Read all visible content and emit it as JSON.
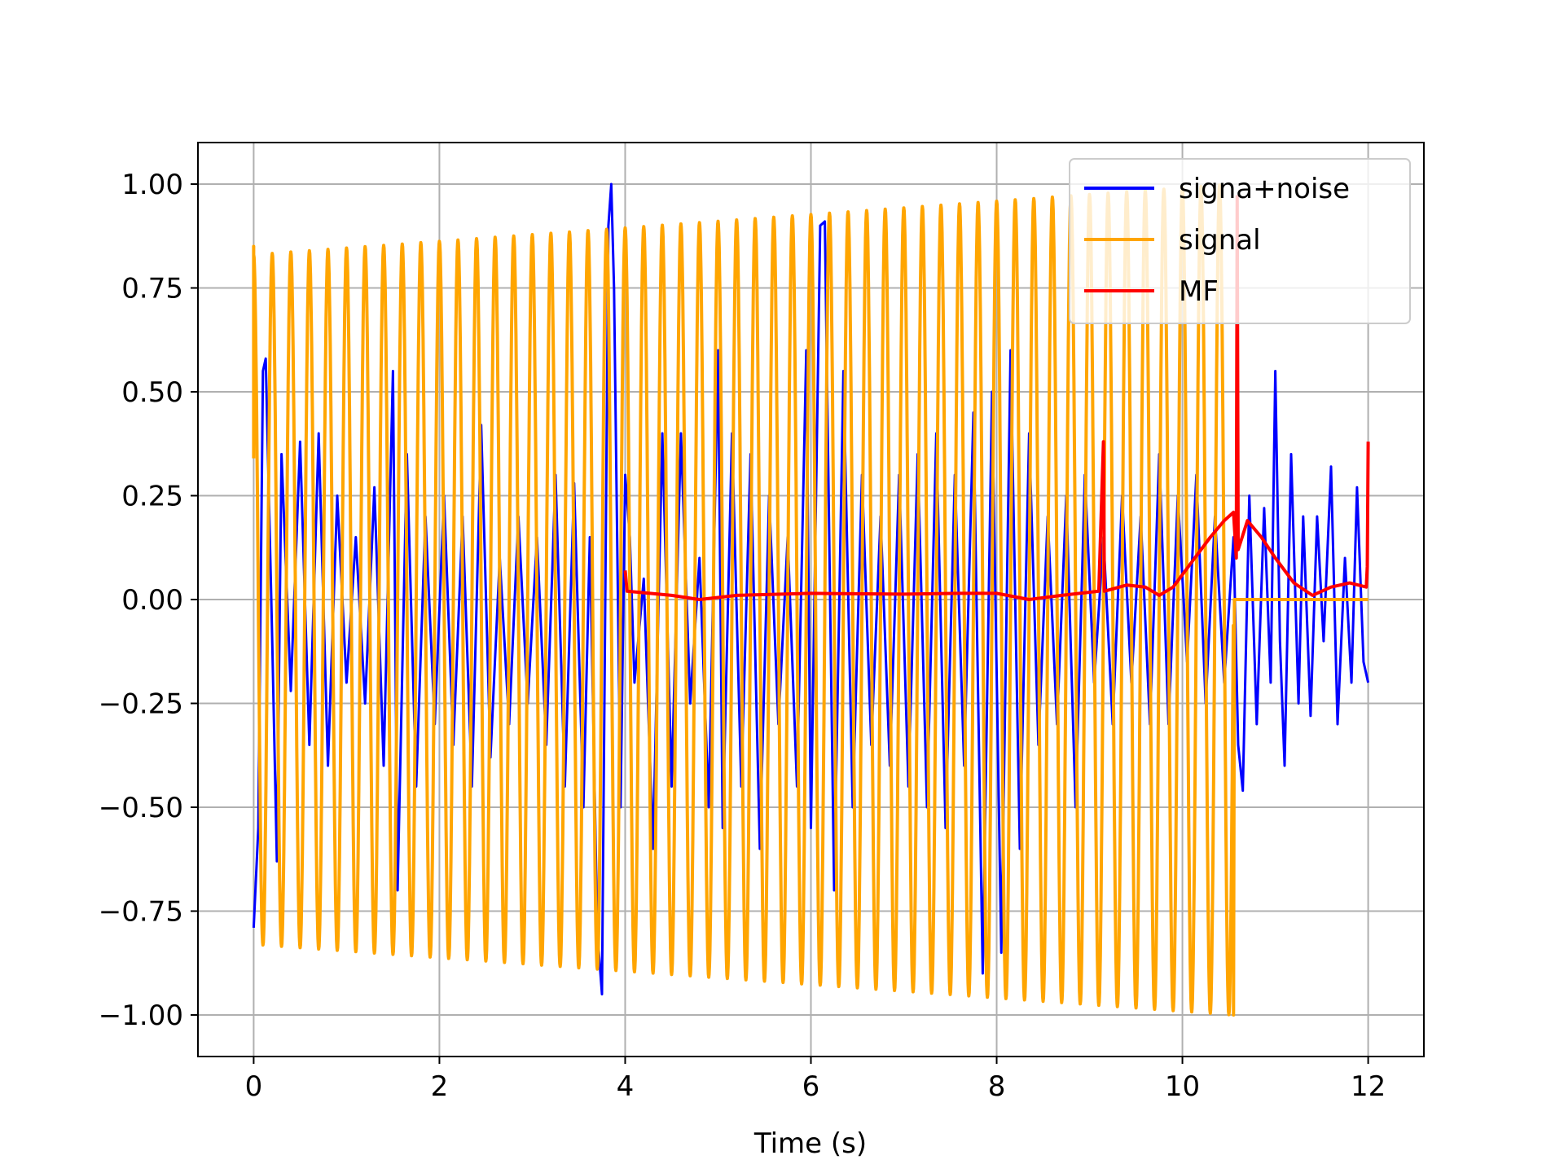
{
  "chart_data": {
    "type": "line",
    "title": "",
    "xlabel": "Time (s)",
    "ylabel": "",
    "xlim": [
      -0.6,
      12.6
    ],
    "ylim": [
      -1.1,
      1.1
    ],
    "x_ticks": [
      0,
      2,
      4,
      6,
      8,
      10,
      12
    ],
    "x_tick_labels": [
      "0",
      "2",
      "4",
      "6",
      "8",
      "10",
      "12"
    ],
    "y_ticks": [
      1.0,
      0.75,
      0.5,
      0.25,
      0.0,
      -0.25,
      -0.5,
      -0.75,
      -1.0
    ],
    "y_tick_labels": [
      "1.00",
      "0.75",
      "0.50",
      "0.25",
      "0.00",
      "−0.25",
      "−0.50",
      "−0.75",
      "−1.00"
    ],
    "grid": true,
    "legend_position": "top-right",
    "series": [
      {
        "name": "signa+noise",
        "color": "#0000ff",
        "points": [
          [
            0.0,
            -0.79
          ],
          [
            0.05,
            -0.55
          ],
          [
            0.1,
            0.55
          ],
          [
            0.13,
            0.58
          ],
          [
            0.2,
            -0.1
          ],
          [
            0.25,
            -0.63
          ],
          [
            0.3,
            0.35
          ],
          [
            0.4,
            -0.22
          ],
          [
            0.5,
            0.38
          ],
          [
            0.6,
            -0.35
          ],
          [
            0.7,
            0.4
          ],
          [
            0.8,
            -0.4
          ],
          [
            0.9,
            0.25
          ],
          [
            1.0,
            -0.2
          ],
          [
            1.1,
            0.15
          ],
          [
            1.2,
            -0.25
          ],
          [
            1.3,
            0.27
          ],
          [
            1.4,
            -0.4
          ],
          [
            1.5,
            0.55
          ],
          [
            1.55,
            -0.7
          ],
          [
            1.65,
            0.35
          ],
          [
            1.75,
            -0.45
          ],
          [
            1.85,
            0.2
          ],
          [
            1.95,
            -0.3
          ],
          [
            2.05,
            0.25
          ],
          [
            2.15,
            -0.35
          ],
          [
            2.25,
            0.2
          ],
          [
            2.35,
            -0.45
          ],
          [
            2.45,
            0.42
          ],
          [
            2.55,
            -0.38
          ],
          [
            2.65,
            0.1
          ],
          [
            2.75,
            -0.3
          ],
          [
            2.85,
            0.2
          ],
          [
            2.95,
            -0.25
          ],
          [
            3.05,
            0.15
          ],
          [
            3.15,
            -0.35
          ],
          [
            3.25,
            0.3
          ],
          [
            3.35,
            -0.45
          ],
          [
            3.45,
            0.28
          ],
          [
            3.55,
            -0.5
          ],
          [
            3.62,
            0.15
          ],
          [
            3.7,
            -0.8
          ],
          [
            3.75,
            -0.95
          ],
          [
            3.82,
            0.9
          ],
          [
            3.85,
            1.0
          ],
          [
            3.88,
            0.75
          ],
          [
            3.95,
            -0.5
          ],
          [
            4.0,
            0.3
          ],
          [
            4.05,
            0.15
          ],
          [
            4.1,
            -0.2
          ],
          [
            4.2,
            0.05
          ],
          [
            4.3,
            -0.6
          ],
          [
            4.4,
            0.4
          ],
          [
            4.5,
            -0.45
          ],
          [
            4.6,
            0.4
          ],
          [
            4.7,
            -0.25
          ],
          [
            4.8,
            0.1
          ],
          [
            4.9,
            -0.5
          ],
          [
            5.0,
            0.6
          ],
          [
            5.05,
            -0.55
          ],
          [
            5.15,
            0.4
          ],
          [
            5.25,
            -0.45
          ],
          [
            5.35,
            0.35
          ],
          [
            5.45,
            -0.6
          ],
          [
            5.55,
            0.25
          ],
          [
            5.65,
            -0.3
          ],
          [
            5.75,
            0.15
          ],
          [
            5.85,
            -0.45
          ],
          [
            5.95,
            0.6
          ],
          [
            6.0,
            -0.55
          ],
          [
            6.1,
            0.9
          ],
          [
            6.15,
            0.91
          ],
          [
            6.25,
            -0.7
          ],
          [
            6.35,
            0.55
          ],
          [
            6.45,
            -0.5
          ],
          [
            6.55,
            0.3
          ],
          [
            6.65,
            -0.35
          ],
          [
            6.75,
            0.2
          ],
          [
            6.85,
            -0.4
          ],
          [
            6.95,
            0.3
          ],
          [
            7.05,
            -0.45
          ],
          [
            7.15,
            0.35
          ],
          [
            7.25,
            -0.5
          ],
          [
            7.35,
            0.4
          ],
          [
            7.45,
            -0.55
          ],
          [
            7.55,
            0.3
          ],
          [
            7.65,
            -0.4
          ],
          [
            7.75,
            0.45
          ],
          [
            7.85,
            -0.9
          ],
          [
            7.95,
            0.5
          ],
          [
            8.05,
            -0.85
          ],
          [
            8.15,
            0.6
          ],
          [
            8.25,
            -0.6
          ],
          [
            8.35,
            0.4
          ],
          [
            8.45,
            -0.35
          ],
          [
            8.55,
            0.2
          ],
          [
            8.65,
            -0.3
          ],
          [
            8.75,
            0.25
          ],
          [
            8.85,
            -0.5
          ],
          [
            8.95,
            0.3
          ],
          [
            9.05,
            -0.2
          ],
          [
            9.15,
            0.15
          ],
          [
            9.25,
            -0.3
          ],
          [
            9.35,
            0.25
          ],
          [
            9.45,
            -0.2
          ],
          [
            9.55,
            0.2
          ],
          [
            9.65,
            -0.3
          ],
          [
            9.75,
            0.35
          ],
          [
            9.85,
            -0.3
          ],
          [
            9.95,
            0.25
          ],
          [
            10.05,
            -0.15
          ],
          [
            10.15,
            0.3
          ],
          [
            10.25,
            -0.25
          ],
          [
            10.35,
            0.2
          ],
          [
            10.45,
            -0.2
          ],
          [
            10.55,
            0.15
          ],
          [
            10.6,
            -0.35
          ],
          [
            10.65,
            -0.46
          ],
          [
            10.72,
            0.25
          ],
          [
            10.8,
            -0.3
          ],
          [
            10.88,
            0.22
          ],
          [
            10.95,
            -0.2
          ],
          [
            11.0,
            0.55
          ],
          [
            11.05,
            -0.1
          ],
          [
            11.1,
            -0.4
          ],
          [
            11.17,
            0.35
          ],
          [
            11.25,
            -0.25
          ],
          [
            11.3,
            0.2
          ],
          [
            11.38,
            -0.28
          ],
          [
            11.45,
            0.2
          ],
          [
            11.52,
            -0.1
          ],
          [
            11.6,
            0.32
          ],
          [
            11.67,
            -0.3
          ],
          [
            11.75,
            0.1
          ],
          [
            11.82,
            -0.2
          ],
          [
            11.88,
            0.27
          ],
          [
            11.95,
            -0.15
          ],
          [
            12.0,
            -0.2
          ]
        ]
      },
      {
        "name": "signal",
        "color": "#ffa500",
        "points": [
          [
            0.0,
            0.34
          ],
          [
            0.0,
            0.85
          ],
          [
            10.55,
            -1.0
          ],
          [
            10.56,
            0.0
          ],
          [
            12.0,
            0.0
          ]
        ],
        "oscillation": {
          "start": 0.0,
          "end": 10.55,
          "period": 0.2,
          "amp_start": 0.83,
          "amp_end": 1.0
        }
      },
      {
        "name": "MF",
        "color": "#ff0000",
        "points": [
          [
            4.0,
            0.07
          ],
          [
            4.02,
            0.02
          ],
          [
            4.5,
            0.01
          ],
          [
            4.8,
            0.0
          ],
          [
            5.2,
            0.01
          ],
          [
            6.0,
            0.015
          ],
          [
            7.0,
            0.013
          ],
          [
            7.6,
            0.015
          ],
          [
            8.0,
            0.015
          ],
          [
            8.35,
            0.0
          ],
          [
            8.7,
            0.01
          ],
          [
            9.1,
            0.02
          ],
          [
            9.15,
            0.38
          ],
          [
            9.16,
            0.02
          ],
          [
            9.4,
            0.035
          ],
          [
            9.6,
            0.03
          ],
          [
            9.75,
            0.01
          ],
          [
            9.9,
            0.03
          ],
          [
            10.1,
            0.09
          ],
          [
            10.3,
            0.15
          ],
          [
            10.45,
            0.19
          ],
          [
            10.55,
            0.21
          ],
          [
            10.58,
            0.1
          ],
          [
            10.59,
            0.97
          ],
          [
            10.6,
            0.12
          ],
          [
            10.7,
            0.19
          ],
          [
            10.85,
            0.15
          ],
          [
            11.0,
            0.1
          ],
          [
            11.2,
            0.04
          ],
          [
            11.4,
            0.01
          ],
          [
            11.6,
            0.03
          ],
          [
            11.8,
            0.04
          ],
          [
            11.98,
            0.03
          ],
          [
            11.99,
            0.08
          ],
          [
            12.0,
            0.38
          ]
        ]
      }
    ]
  }
}
